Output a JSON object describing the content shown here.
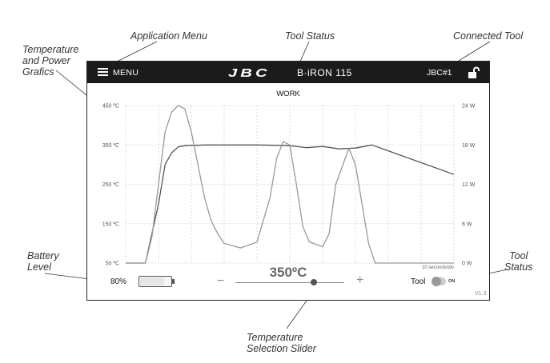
{
  "callouts": {
    "application_menu": "Application Menu",
    "tool_status_top": "Tool Status",
    "connected_tool": "Connected Tool",
    "temp_power_line1": "Temperature",
    "temp_power_line2": "and Power",
    "temp_power_line3": "Grafics",
    "battery_line1": "Battery",
    "battery_line2": "Level",
    "tool_status_right_line1": "Tool",
    "tool_status_right_line2": "Status",
    "slider_line1": "Temperature",
    "slider_line2": "Selection Slider"
  },
  "header": {
    "menu_label": "MENU",
    "brand": "JBC",
    "model": "B·iRON 115",
    "tool_id": "JBC#1"
  },
  "status": {
    "tool_status": "WORK"
  },
  "chart_data": {
    "type": "line",
    "title": "",
    "x_label": "10 seconds/div",
    "x_range": [
      0,
      10
    ],
    "left_axis": {
      "ticks": [
        "450 ºC",
        "350 ºC",
        "250 ºC",
        "150 ºC",
        "50 ºC"
      ],
      "range": [
        50,
        450
      ],
      "unit": "ºC"
    },
    "right_axis": {
      "ticks": [
        "24 W",
        "18 W",
        "12 W",
        "6 W",
        "0 W"
      ],
      "range": [
        0,
        24
      ],
      "unit": "W"
    },
    "grid": true,
    "series": [
      {
        "axis": "left",
        "x": [
          0,
          0.6,
          1.0,
          1.2,
          1.4,
          1.6,
          1.8,
          2.0,
          2.2,
          2.4,
          2.6,
          3.0,
          3.5,
          4.0,
          4.5,
          5.0,
          5.5,
          6.0,
          6.5,
          7.0,
          7.5,
          8.0,
          9.0,
          10.0
        ],
        "y": [
          50,
          50,
          200,
          300,
          330,
          345,
          348,
          349,
          349,
          350,
          350,
          350,
          350,
          350,
          349,
          348,
          343,
          346,
          340,
          342,
          350,
          335,
          305,
          275
        ]
      },
      {
        "axis": "right",
        "x": [
          0,
          0.6,
          0.8,
          1.0,
          1.2,
          1.4,
          1.6,
          1.8,
          2.0,
          2.2,
          2.4,
          2.6,
          2.8,
          3.0,
          3.5,
          4.0,
          4.4,
          4.6,
          4.8,
          5.0,
          5.2,
          5.4,
          5.6,
          6.0,
          6.2,
          6.4,
          6.8,
          7.0,
          7.2,
          7.4,
          7.6,
          7.8,
          8.0,
          10.0
        ],
        "y": [
          0,
          0,
          4,
          12,
          20,
          23,
          24,
          23.5,
          20,
          15,
          10,
          6.5,
          4.5,
          3.0,
          2.3,
          3.2,
          10,
          16,
          18.5,
          18,
          12,
          5.5,
          3.2,
          2.5,
          4.5,
          12,
          17.5,
          15,
          9,
          3,
          0,
          0,
          0,
          0
        ]
      }
    ]
  },
  "battery": {
    "percent_label": "80%",
    "level": 0.8
  },
  "temperature": {
    "setpoint_label": "350ºC",
    "minus": "−",
    "plus": "+",
    "slider_value": 350,
    "slider_min": 90,
    "slider_max": 450
  },
  "tool_toggle": {
    "label": "Tool",
    "state": "ON"
  },
  "version": "V1.3"
}
